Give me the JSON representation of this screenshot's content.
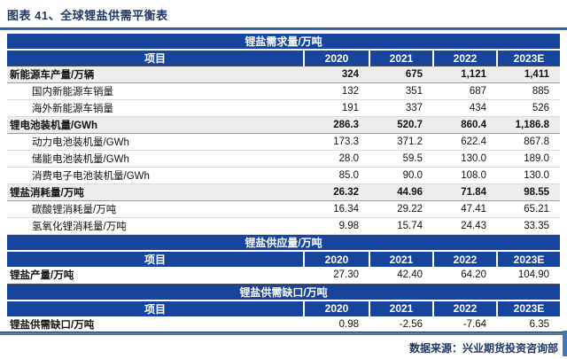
{
  "title": "图表 41、全球锂盐供需平衡表",
  "footer": {
    "source_label": "数据来源：兴业期货投资咨询部"
  },
  "colors": {
    "header_blue": "#17459E",
    "rule_blue": "#3E6CA8",
    "title_navy": "#1F3864",
    "subtotal_gray": "#EDEDED",
    "accent_bar_blue": "#4178B8"
  },
  "columns": [
    "项目",
    "2020",
    "2021",
    "2022",
    "2023E"
  ],
  "sections": [
    {
      "band": "锂盐需求量/万吨",
      "rows": [
        {
          "label": "新能源车产量/万辆",
          "style": "subtotal",
          "values": [
            "324",
            "675",
            "1,121",
            "1,411"
          ]
        },
        {
          "label": "国内新能源车销量",
          "style": "sub",
          "values": [
            "132",
            "351",
            "687",
            "885"
          ]
        },
        {
          "label": "海外新能源车销量",
          "style": "sub",
          "values": [
            "191",
            "337",
            "434",
            "526"
          ]
        },
        {
          "label": "锂电池装机量/GWh",
          "style": "subtotal",
          "values": [
            "286.3",
            "520.7",
            "860.4",
            "1,186.8"
          ]
        },
        {
          "label": "动力电池装机量/GWh",
          "style": "sub",
          "values": [
            "173.3",
            "371.2",
            "622.4",
            "867.8"
          ]
        },
        {
          "label": "储能电池装机量/GWh",
          "style": "sub",
          "values": [
            "28.0",
            "59.5",
            "130.0",
            "189.0"
          ]
        },
        {
          "label": "消费电子电池装机量/GWh",
          "style": "sub",
          "values": [
            "85.0",
            "90.0",
            "108.0",
            "130.0"
          ]
        },
        {
          "label": "锂盐消耗量/万吨",
          "style": "subtotal",
          "values": [
            "26.32",
            "44.96",
            "71.84",
            "98.55"
          ]
        },
        {
          "label": "碳酸锂消耗量/万吨",
          "style": "sub",
          "values": [
            "16.34",
            "29.22",
            "47.41",
            "65.21"
          ]
        },
        {
          "label": "氢氧化锂消耗量/万吨",
          "style": "sub",
          "values": [
            "9.98",
            "15.74",
            "24.43",
            "33.35"
          ]
        }
      ]
    },
    {
      "band": "锂盐供应量/万吨",
      "rows": [
        {
          "label": "锂盐产量/万吨",
          "style": "total",
          "values": [
            "27.30",
            "42.40",
            "64.20",
            "104.90"
          ]
        }
      ]
    },
    {
      "band": "锂盐供需缺口/万吨",
      "rows": [
        {
          "label": "锂盐供需缺口/万吨",
          "style": "total",
          "values": [
            "0.98",
            "-2.56",
            "-7.64",
            "6.35"
          ]
        }
      ]
    }
  ]
}
